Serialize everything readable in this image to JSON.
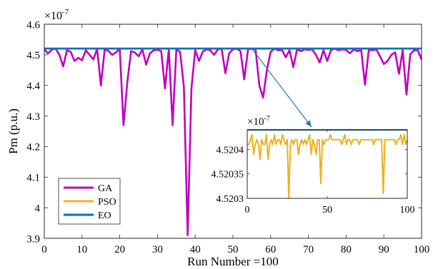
{
  "chart_data": [
    {
      "type": "line",
      "xlabel": "Run Number =100",
      "ylabel": "Pm (p.u.)",
      "xlim": [
        0,
        100
      ],
      "ylim": [
        3.9,
        4.6
      ],
      "xticks": [
        "0",
        "10",
        "20",
        "30",
        "40",
        "50",
        "60",
        "70",
        "80",
        "90",
        "100"
      ],
      "yticks": [
        "3.9",
        "4",
        "4.1",
        "4.2",
        "4.3",
        "4.4",
        "4.5",
        "4.6"
      ],
      "scale_base": "×10",
      "scale_exponent": "-7",
      "legend": {
        "placement": "bottom-left",
        "entries": [
          "GA",
          "PSO",
          "EO"
        ]
      },
      "series": [
        {
          "name": "GA",
          "color": "#c000c0",
          "y": [
            4.517,
            4.505,
            4.517,
            4.52,
            4.5,
            4.462,
            4.515,
            4.51,
            4.48,
            4.49,
            4.482,
            4.515,
            4.5,
            4.485,
            4.52,
            4.4,
            4.518,
            4.513,
            4.5,
            4.508,
            4.52,
            4.27,
            4.41,
            4.512,
            4.508,
            4.495,
            4.518,
            4.468,
            4.505,
            4.515,
            4.517,
            4.512,
            4.39,
            4.52,
            4.27,
            4.518,
            4.51,
            4.395,
            3.91,
            4.39,
            4.515,
            4.48,
            4.51,
            4.518,
            4.515,
            4.5,
            4.518,
            4.52,
            4.44,
            4.505,
            4.518,
            4.52,
            4.512,
            4.42,
            4.518,
            4.52,
            4.518,
            4.4,
            4.36,
            4.45,
            4.51,
            4.52,
            4.515,
            4.516,
            4.492,
            4.515,
            4.46,
            4.518,
            4.512,
            4.518,
            4.516,
            4.518,
            4.5,
            4.475,
            4.515,
            4.48,
            4.516,
            4.52,
            4.515,
            4.518,
            4.516,
            4.505,
            4.518,
            4.512,
            4.516,
            4.402,
            4.516,
            4.515,
            4.518,
            4.495,
            4.47,
            4.48,
            4.5,
            4.508,
            4.438,
            4.515,
            4.37,
            4.502,
            4.515,
            4.515,
            4.485
          ]
        },
        {
          "name": "PSO",
          "color": "#edb120",
          "y": [
            4.52044,
            4.52044
          ]
        },
        {
          "name": "EO",
          "color": "#0072bd",
          "y": [
            4.52044,
            4.52044
          ]
        }
      ],
      "annotation": {
        "from_x": 55,
        "from_y": 4.52044,
        "to": "inset",
        "color": "#2e75b6"
      }
    },
    {
      "type": "line",
      "placement": "inset",
      "xlim": [
        0,
        100
      ],
      "ylim": [
        4.5203,
        4.52044
      ],
      "xticks": [
        "0",
        "50",
        "100"
      ],
      "yticks": [
        "4.5203",
        "4.52035",
        "4.5204"
      ],
      "scale_base": "×10",
      "scale_exponent": "-7",
      "series": [
        {
          "name": "PSO",
          "color": "#edb120",
          "y": [
            4.52041,
            4.52041,
            4.52042,
            4.52043,
            4.52039,
            4.52041,
            4.52042,
            4.52041,
            4.52038,
            4.52042,
            4.52041,
            4.52041,
            4.52043,
            4.52038,
            4.52041,
            4.52042,
            4.52041,
            4.52043,
            4.52041,
            4.52042,
            4.52042,
            4.52041,
            4.52043,
            4.52042,
            4.52041,
            4.52042,
            4.5203,
            4.52041,
            4.52042,
            4.52041,
            4.52042,
            4.52042,
            4.52039,
            4.52041,
            4.52042,
            4.52041,
            4.52042,
            4.52041,
            4.52042,
            4.52043,
            4.52039,
            4.52042,
            4.52041,
            4.52039,
            4.52042,
            4.52042,
            4.52033,
            4.52042,
            4.52041,
            4.52042,
            4.52042,
            4.52042,
            4.52043,
            4.52042,
            4.52042,
            4.52042,
            4.52042,
            4.52042,
            4.52042,
            4.52041,
            4.52042,
            4.52043,
            4.52041,
            4.52042,
            4.52042,
            4.52041,
            4.52042,
            4.52042,
            4.52042,
            4.52042,
            4.52041,
            4.52042,
            4.52042,
            4.52042,
            4.52042,
            4.52042,
            4.52042,
            4.52042,
            4.52042,
            4.52041,
            4.52042,
            4.52042,
            4.52042,
            4.52042,
            4.52042,
            4.52031,
            4.52042,
            4.52042,
            4.52042,
            4.52042,
            4.52042,
            4.52042,
            4.52042,
            4.52041,
            4.52042,
            4.52042,
            4.52043,
            4.52041,
            4.52043,
            4.52041,
            4.52042
          ]
        },
        {
          "name": "EO",
          "color": "#0072bd",
          "y": [
            4.52044,
            4.52044
          ]
        }
      ]
    }
  ]
}
